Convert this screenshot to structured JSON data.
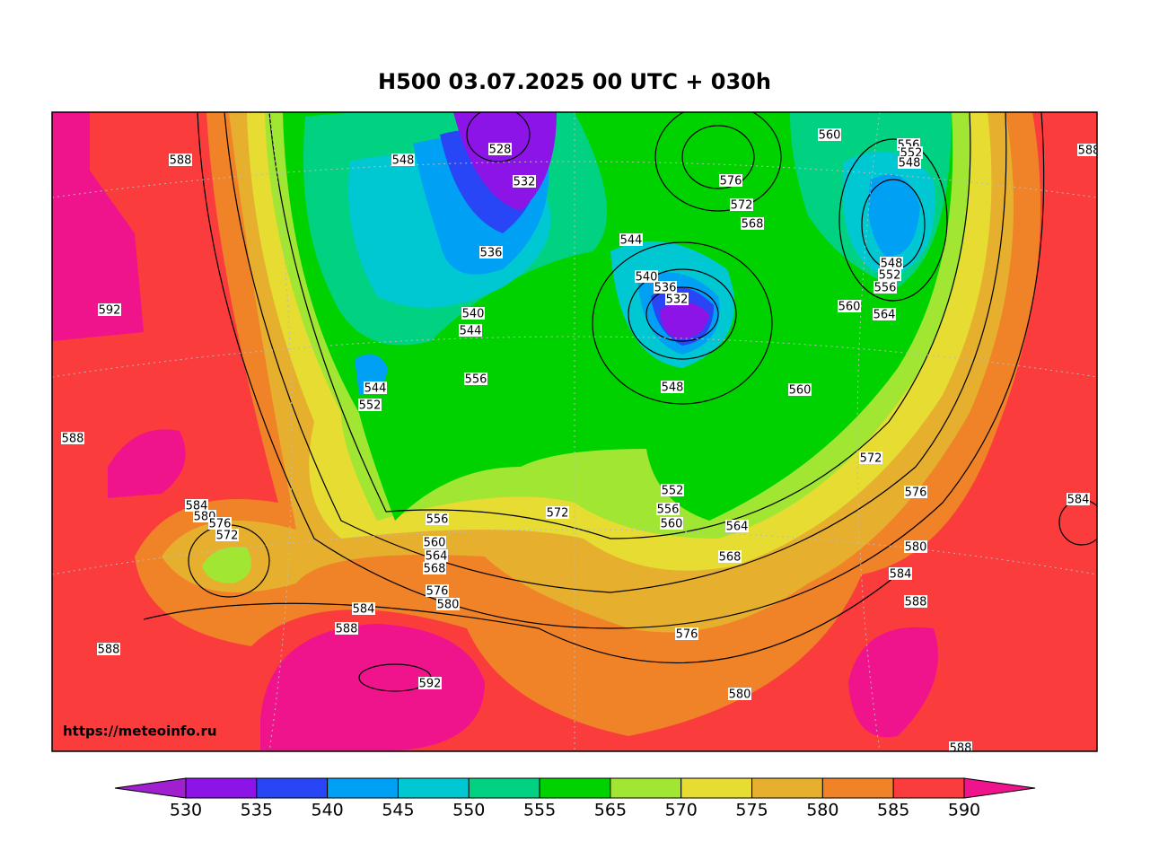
{
  "title": "H500  03.07.2025 00 UTC + 030h",
  "watermark": "https://meteoinfo.ru",
  "contour_labels": [
    "588",
    "548",
    "528",
    "532",
    "536",
    "540",
    "544",
    "556",
    "544",
    "552",
    "576",
    "572",
    "568",
    "544",
    "540",
    "536",
    "532",
    "548",
    "552",
    "556",
    "560",
    "564",
    "568",
    "572",
    "556",
    "560",
    "564",
    "568",
    "576",
    "580",
    "584",
    "588",
    "592",
    "576",
    "580",
    "588",
    "588",
    "592",
    "584",
    "580",
    "576",
    "572",
    "560",
    "556",
    "552",
    "548",
    "548",
    "552",
    "556",
    "560",
    "564",
    "560",
    "572",
    "576",
    "580",
    "584",
    "588",
    "588",
    "584",
    "588"
  ],
  "colorbar": {
    "ticks": [
      530,
      535,
      540,
      545,
      550,
      555,
      565,
      570,
      575,
      580,
      585,
      590
    ],
    "under_color": "#a020d0",
    "over_color": "#f0148c",
    "colors": [
      "#8c14e6",
      "#2846f5",
      "#00a0f5",
      "#00c8d2",
      "#00d282",
      "#00d200",
      "#a0e632",
      "#e6dc32",
      "#e6af2d",
      "#f08228",
      "#fa3c3c"
    ]
  }
}
